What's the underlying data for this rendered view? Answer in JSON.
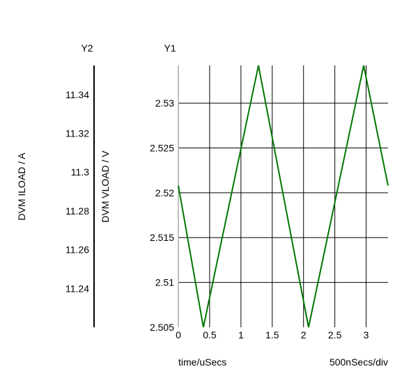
{
  "chart_data": {
    "type": "line",
    "xlabel": "time/uSecs",
    "x_division_note": "500nSecs/div",
    "xlim": [
      0,
      3.35
    ],
    "x_ticks": [
      {
        "value": 0,
        "label": "0"
      },
      {
        "value": 0.5,
        "label": "0.5"
      },
      {
        "value": 1,
        "label": "1"
      },
      {
        "value": 1.5,
        "label": "1.5"
      },
      {
        "value": 2,
        "label": "2"
      },
      {
        "value": 2.5,
        "label": "2.5"
      },
      {
        "value": 3,
        "label": "3"
      }
    ],
    "y1_axis": {
      "title": "Y1",
      "label": "DVM VLOAD / V",
      "ylim": [
        2.505,
        2.5342
      ],
      "ticks": [
        {
          "value": 2.505,
          "label": "2.505"
        },
        {
          "value": 2.51,
          "label": "2.51"
        },
        {
          "value": 2.515,
          "label": "2.515"
        },
        {
          "value": 2.52,
          "label": "2.52"
        },
        {
          "value": 2.525,
          "label": "2.525"
        },
        {
          "value": 2.53,
          "label": "2.53"
        }
      ]
    },
    "y2_axis": {
      "title": "Y2",
      "label": "DVM ILOAD / A",
      "ylim": [
        11.22,
        11.355
      ],
      "ticks": [
        {
          "value": 11.24,
          "label": "11.24"
        },
        {
          "value": 11.26,
          "label": "11.26"
        },
        {
          "value": 11.28,
          "label": "11.28"
        },
        {
          "value": 11.3,
          "label": "11.3"
        },
        {
          "value": 11.32,
          "label": "11.32"
        },
        {
          "value": 11.34,
          "label": "11.34"
        }
      ]
    },
    "grid": true,
    "series": [
      {
        "axis": "y1",
        "color": "#007700",
        "x": [
          0,
          0.4,
          1.28,
          2.08,
          2.96,
          3.35
        ],
        "y": [
          2.5208,
          2.505,
          2.5342,
          2.505,
          2.5342,
          2.5208
        ]
      }
    ]
  }
}
